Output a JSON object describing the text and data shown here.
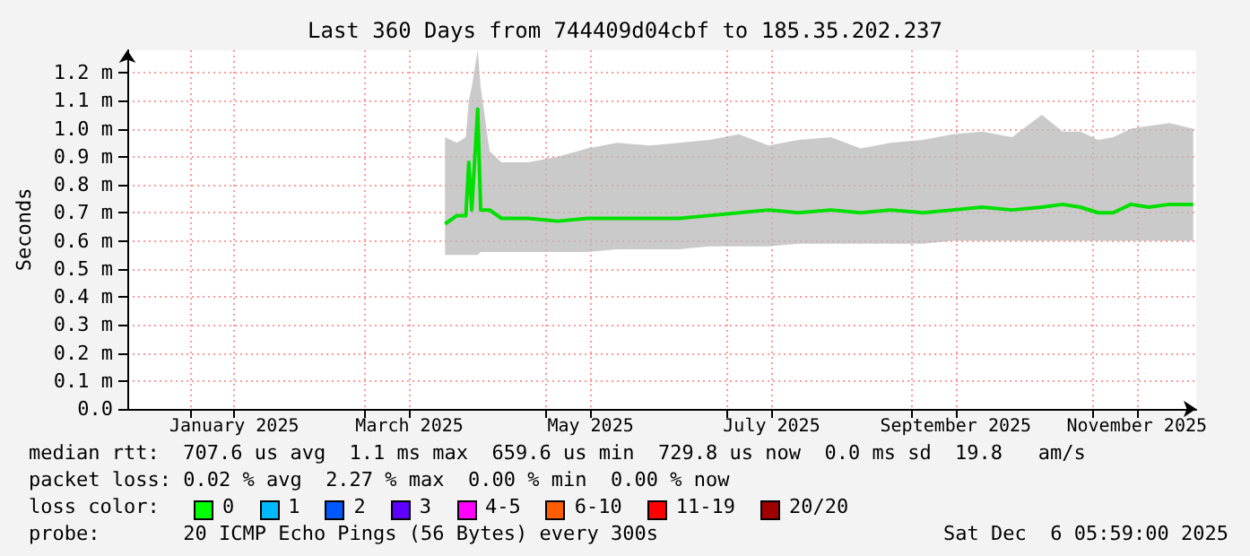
{
  "chart_data": {
    "type": "line",
    "title": "Last 360 Days from 744409d04cbf to 185.35.202.237",
    "ylabel": "Seconds",
    "xlim": [
      "2024-12-11",
      "2025-12-06"
    ],
    "xticks": [
      {
        "value": "2025-01-01",
        "label": null
      },
      {
        "value": "2025-01-16",
        "label": "January 2025"
      },
      {
        "value": "2025-03-01",
        "label": null
      },
      {
        "value": "2025-03-16",
        "label": "March 2025"
      },
      {
        "value": "2025-05-01",
        "label": null
      },
      {
        "value": "2025-05-16",
        "label": "May 2025"
      },
      {
        "value": "2025-07-01",
        "label": null
      },
      {
        "value": "2025-07-16",
        "label": "July 2025"
      },
      {
        "value": "2025-09-01",
        "label": null
      },
      {
        "value": "2025-09-16",
        "label": "September 2025"
      },
      {
        "value": "2025-11-01",
        "label": null
      },
      {
        "value": "2025-11-16",
        "label": "November 2025"
      }
    ],
    "ylim": [
      0,
      1.28
    ],
    "yticks": [
      {
        "value": 0,
        "label": "0.0"
      },
      {
        "value": 0.1,
        "label": "0.1 m"
      },
      {
        "value": 0.2,
        "label": "0.2 m"
      },
      {
        "value": 0.3,
        "label": "0.3 m"
      },
      {
        "value": 0.4,
        "label": "0.4 m"
      },
      {
        "value": 0.5,
        "label": "0.5 m"
      },
      {
        "value": 0.6,
        "label": "0.6 m"
      },
      {
        "value": 0.7,
        "label": "0.7 m"
      },
      {
        "value": 0.8,
        "label": "0.8 m"
      },
      {
        "value": 0.9,
        "label": "0.9 m"
      },
      {
        "value": 1.0,
        "label": "1.0 m"
      },
      {
        "value": 1.1,
        "label": "1.1 m"
      },
      {
        "value": 1.2,
        "label": "1.2 m"
      }
    ],
    "grid": true,
    "marker": "none",
    "line_style": "solid",
    "series": [
      {
        "color": "#00e000",
        "x": [
          "2025-03-28",
          "2025-04-01",
          "2025-04-04",
          "2025-04-05",
          "2025-04-06",
          "2025-04-08",
          "2025-04-09",
          "2025-04-12",
          "2025-04-16",
          "2025-04-25",
          "2025-05-05",
          "2025-05-15",
          "2025-05-25",
          "2025-06-05",
          "2025-06-15",
          "2025-06-25",
          "2025-07-05",
          "2025-07-15",
          "2025-07-25",
          "2025-08-05",
          "2025-08-15",
          "2025-08-25",
          "2025-09-05",
          "2025-09-15",
          "2025-09-25",
          "2025-10-05",
          "2025-10-15",
          "2025-10-22",
          "2025-10-28",
          "2025-11-03",
          "2025-11-08",
          "2025-11-14",
          "2025-11-20",
          "2025-11-27",
          "2025-12-05"
        ],
        "values": [
          0.66,
          0.69,
          0.69,
          0.88,
          0.71,
          1.07,
          0.71,
          0.71,
          0.68,
          0.68,
          0.67,
          0.68,
          0.68,
          0.68,
          0.68,
          0.69,
          0.7,
          0.71,
          0.7,
          0.71,
          0.7,
          0.71,
          0.7,
          0.71,
          0.72,
          0.71,
          0.72,
          0.73,
          0.72,
          0.7,
          0.7,
          0.73,
          0.72,
          0.73,
          0.73
        ],
        "lower": [
          0.55,
          0.55,
          0.55,
          0.55,
          0.55,
          0.55,
          0.56,
          0.56,
          0.56,
          0.56,
          0.56,
          0.56,
          0.57,
          0.57,
          0.57,
          0.58,
          0.58,
          0.58,
          0.59,
          0.59,
          0.59,
          0.59,
          0.59,
          0.6,
          0.6,
          0.6,
          0.6,
          0.6,
          0.6,
          0.6,
          0.6,
          0.6,
          0.6,
          0.6,
          0.6
        ],
        "upper": [
          0.97,
          0.95,
          0.97,
          1.1,
          1.15,
          1.28,
          1.15,
          0.92,
          0.88,
          0.88,
          0.9,
          0.93,
          0.95,
          0.94,
          0.95,
          0.96,
          0.98,
          0.94,
          0.96,
          0.97,
          0.93,
          0.95,
          0.96,
          0.98,
          0.99,
          0.97,
          1.05,
          0.99,
          0.99,
          0.96,
          0.97,
          1.0,
          1.01,
          1.02,
          1.0
        ]
      }
    ],
    "annotations": [
      "median rtt:  707.6 us avg  1.1 ms max  659.6 us min  729.8 us now  0.0 ms sd  19.8   am/s",
      "packet loss: 0.02 % avg  2.27 % max  0.00 % min  0.00 % now",
      "loss color:",
      "0",
      "1",
      "2",
      "3",
      "4-5",
      "6-10",
      "11-19",
      "20/20",
      "probe:       20 ICMP Echo Pings (56 Bytes) every 300s",
      "Sat Dec  6 05:59:00 2025"
    ]
  }
}
